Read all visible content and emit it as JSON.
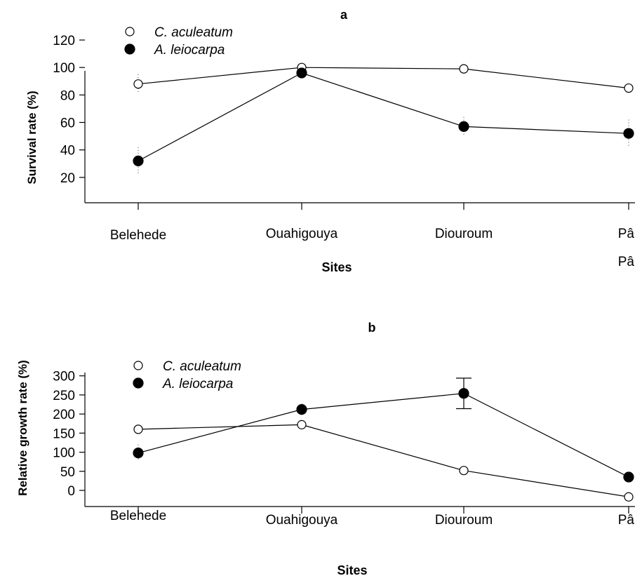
{
  "chart_data": [
    {
      "type": "line",
      "title": "a",
      "xlabel": "Sites",
      "ylabel": "Survival rate (%)",
      "categories": [
        "Belehede",
        "Ouahigouya",
        "Diouroum",
        "Pâ"
      ],
      "extra_category_label": "Pâ",
      "ylim": [
        10,
        120
      ],
      "yticks": [
        20,
        40,
        60,
        80,
        100,
        120
      ],
      "legend_position": "top-left",
      "series": [
        {
          "name": "C. aculeatum",
          "marker": "open-circle",
          "values": [
            88,
            100,
            99,
            85
          ],
          "err": [
            7,
            0,
            0,
            0
          ]
        },
        {
          "name": "A. leiocarpa",
          "marker": "filled-circle",
          "values": [
            32,
            96,
            57,
            52
          ],
          "err": [
            10,
            0,
            7,
            10
          ]
        }
      ]
    },
    {
      "type": "line",
      "title": "b",
      "xlabel": "Sites",
      "ylabel": "Relative growth rate (%)",
      "categories": [
        "Belehede",
        "Ouahigouya",
        "Diouroum",
        "Pâ"
      ],
      "ylim": [
        -30,
        310
      ],
      "yticks": [
        0,
        50,
        100,
        150,
        200,
        250,
        300
      ],
      "legend_position": "top-left",
      "series": [
        {
          "name": "C. aculeatum",
          "marker": "open-circle",
          "values": [
            160,
            172,
            52,
            -17
          ],
          "err": [
            0,
            0,
            0,
            0
          ]
        },
        {
          "name": "A. leiocarpa",
          "marker": "filled-circle",
          "values": [
            98,
            212,
            254,
            35
          ],
          "err": [
            22,
            15,
            40,
            0
          ]
        }
      ]
    }
  ]
}
